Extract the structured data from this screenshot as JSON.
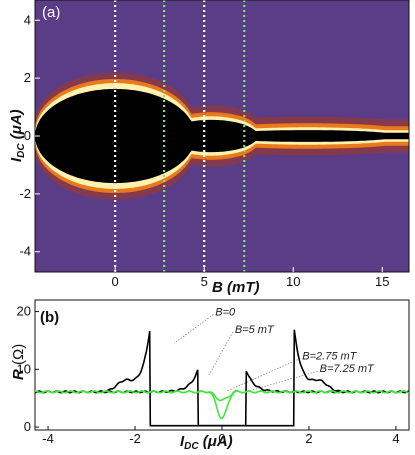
{
  "chart_data": [
    {
      "panel_label": "(a)",
      "type": "heatmap",
      "xlabel": "B (mT)",
      "ylabel": "I_DC (μA)",
      "xlim": [
        -4.5,
        16.5
      ],
      "ylim": [
        -4.7,
        4.7
      ],
      "x_ticks": [
        "0",
        "5",
        "10",
        "15"
      ],
      "y_ticks": [
        "4",
        "2",
        "0",
        "-2",
        "-4"
      ],
      "colors": {
        "background": "#5b3c87",
        "core": "#000000",
        "edge_bright": "#fff2b0",
        "edge_mid": "#e87a1c",
        "edge_outer": "#a8361e"
      },
      "lobes": [
        {
          "center_B": 0,
          "half_width_B": 4.5,
          "amplitude_uA": 1.75
        },
        {
          "center_B": 5.4,
          "half_width_B": 2.6,
          "amplitude_uA": 0.6
        },
        {
          "center_B": 10.8,
          "half_width_B": 5.2,
          "amplitude_uA": 0.22
        }
      ],
      "vertical_cuts": [
        {
          "B": 0,
          "color": "#ffffff"
        },
        {
          "B": 2.75,
          "color": "#7fe08a"
        },
        {
          "B": 5,
          "color": "#ffffff"
        },
        {
          "B": 7.25,
          "color": "#7fe08a"
        }
      ]
    },
    {
      "panel_label": "(b)",
      "type": "line",
      "xlabel": "I_DC (μA)",
      "ylabel": "R (Ω)",
      "xlim": [
        -4.3,
        4.3
      ],
      "ylim": [
        -0.5,
        22
      ],
      "x_ticks": [
        "-4",
        "-2",
        "0",
        "2",
        "4"
      ],
      "y_ticks": [
        "20",
        "10",
        "0"
      ],
      "series": [
        {
          "name": "B=0",
          "color": "#000000",
          "Ic": 1.65,
          "peak": 17.5,
          "dip_width": 0.03,
          "dip_depth": 0
        },
        {
          "name": "B=5 mT",
          "color": "#000000",
          "Ic": 0.55,
          "peak": 10,
          "dip_width": 0.03,
          "dip_depth": 0
        },
        {
          "name": "B=2.75 mT",
          "color": "#3ee83e",
          "Ic": 0.28,
          "peak": 6.4,
          "dip_width": 0.22,
          "dip_depth": 1.4
        },
        {
          "name": "B=7.25 mT",
          "color": "#3ee83e",
          "Ic": 0.28,
          "peak": 6.2,
          "dip_width": 0.16,
          "dip_depth": 4.6
        }
      ],
      "baseline_R": 6.1,
      "annotations": [
        {
          "text": "B=0",
          "x": -0.2,
          "y": 20.0,
          "target_x": -1.1,
          "target_y": 14.5
        },
        {
          "text": "B=5 mT",
          "x": 0.25,
          "y": 17.0,
          "target_x": -0.3,
          "target_y": 9.0
        },
        {
          "text": "B=2.75 mT",
          "x": 1.8,
          "y": 12.4,
          "target_x": 0.1,
          "target_y": 6.2
        },
        {
          "text": "B=7.25 mT",
          "x": 2.2,
          "y": 10.2,
          "target_x": 0.5,
          "target_y": 6.0
        }
      ]
    }
  ]
}
